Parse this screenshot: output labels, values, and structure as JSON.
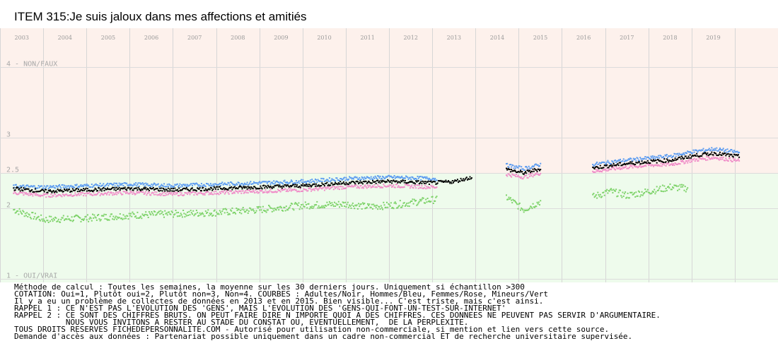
{
  "chart_data": {
    "type": "scatter",
    "title": "ITEM 315:Je suis jaloux dans mes affections et amitiés",
    "x_axis": {
      "type": "time",
      "range": [
        "2002-07",
        "2020-06"
      ],
      "tick_labels": [
        "2003",
        "2004",
        "2005",
        "2006",
        "2007",
        "2008",
        "2009",
        "2010",
        "2011",
        "2012",
        "2013",
        "2014",
        "2015",
        "2016",
        "2017",
        "2018",
        "2019"
      ],
      "years": [
        2003,
        2004,
        2005,
        2006,
        2007,
        2008,
        2009,
        2010,
        2011,
        2012,
        2013,
        2014,
        2015,
        2016,
        2017,
        2018,
        2019
      ]
    },
    "y_axis": {
      "range": [
        1,
        4
      ],
      "ticks": [
        {
          "value": 4,
          "label": "4 - NON/FAUX"
        },
        {
          "value": 3,
          "label": "3"
        },
        {
          "value": 2.5,
          "label": "2.5"
        },
        {
          "value": 2,
          "label": "2"
        },
        {
          "value": 1,
          "label": "1 - OUI/VRAI"
        }
      ]
    },
    "background_bands": [
      {
        "from": 2.5,
        "to": 4,
        "color": "#fdf1ec"
      },
      {
        "from": 1,
        "to": 2.5,
        "color": "#eefbec"
      }
    ],
    "series": [
      {
        "key": "adultes",
        "color": "#000000",
        "points": [
          [
            2002.8,
            2.28
          ],
          [
            2003.5,
            2.24
          ],
          [
            2004.5,
            2.26
          ],
          [
            2005.5,
            2.28
          ],
          [
            2006.5,
            2.26
          ],
          [
            2007.5,
            2.28
          ],
          [
            2008.5,
            2.3
          ],
          [
            2009.5,
            2.32
          ],
          [
            2010.5,
            2.36
          ],
          [
            2011.5,
            2.38
          ],
          [
            2012.5,
            2.36
          ],
          [
            2013.0,
            2.38
          ],
          [
            2013.4,
            2.44
          ]
        ],
        "segments": [
          {
            "from": 2002.8,
            "to": 2013.4
          },
          {
            "from": 2014.2,
            "to": 2015.0,
            "points": [
              [
                2014.2,
                2.55
              ],
              [
                2014.6,
                2.5
              ],
              [
                2015.0,
                2.56
              ]
            ]
          },
          {
            "from": 2016.2,
            "to": 2019.6,
            "points": [
              [
                2016.2,
                2.57
              ],
              [
                2016.8,
                2.62
              ],
              [
                2017.5,
                2.66
              ],
              [
                2018.0,
                2.68
              ],
              [
                2018.5,
                2.74
              ],
              [
                2019.0,
                2.78
              ],
              [
                2019.6,
                2.73
              ]
            ]
          }
        ]
      },
      {
        "key": "hommes",
        "color": "#5b9bf0",
        "points": [
          [
            2002.8,
            2.31
          ],
          [
            2003.5,
            2.3
          ],
          [
            2004.5,
            2.32
          ],
          [
            2005.5,
            2.34
          ],
          [
            2006.5,
            2.32
          ],
          [
            2007.5,
            2.34
          ],
          [
            2008.5,
            2.36
          ],
          [
            2009.5,
            2.38
          ],
          [
            2010.5,
            2.42
          ],
          [
            2011.5,
            2.44
          ],
          [
            2012.5,
            2.42
          ]
        ],
        "segments": [
          {
            "from": 2002.8,
            "to": 2012.6
          },
          {
            "from": 2014.2,
            "to": 2015.0,
            "points": [
              [
                2014.2,
                2.61
              ],
              [
                2014.6,
                2.56
              ],
              [
                2015.0,
                2.62
              ]
            ]
          },
          {
            "from": 2016.2,
            "to": 2019.6,
            "points": [
              [
                2016.2,
                2.62
              ],
              [
                2016.8,
                2.67
              ],
              [
                2017.5,
                2.71
              ],
              [
                2018.0,
                2.74
              ],
              [
                2018.5,
                2.8
              ],
              [
                2019.0,
                2.84
              ],
              [
                2019.6,
                2.79
              ]
            ]
          }
        ]
      },
      {
        "key": "femmes",
        "color": "#f08cc8",
        "points": [
          [
            2002.8,
            2.22
          ],
          [
            2003.5,
            2.18
          ],
          [
            2004.5,
            2.2
          ],
          [
            2005.5,
            2.22
          ],
          [
            2006.5,
            2.2
          ],
          [
            2007.5,
            2.22
          ],
          [
            2008.5,
            2.24
          ],
          [
            2009.5,
            2.26
          ],
          [
            2010.5,
            2.3
          ],
          [
            2011.5,
            2.32
          ],
          [
            2012.5,
            2.3
          ]
        ],
        "segments": [
          {
            "from": 2002.8,
            "to": 2012.6
          },
          {
            "from": 2014.2,
            "to": 2015.0,
            "points": [
              [
                2014.2,
                2.48
              ],
              [
                2014.6,
                2.44
              ],
              [
                2015.0,
                2.5
              ]
            ]
          },
          {
            "from": 2016.2,
            "to": 2019.6,
            "points": [
              [
                2016.2,
                2.52
              ],
              [
                2016.8,
                2.57
              ],
              [
                2017.5,
                2.61
              ],
              [
                2018.0,
                2.62
              ],
              [
                2018.5,
                2.68
              ],
              [
                2019.0,
                2.72
              ],
              [
                2019.6,
                2.67
              ]
            ]
          }
        ]
      },
      {
        "key": "mineurs",
        "color": "#7ed36a",
        "points": [
          [
            2002.8,
            1.98
          ],
          [
            2003.5,
            1.84
          ],
          [
            2004.5,
            1.86
          ],
          [
            2005.5,
            1.9
          ],
          [
            2006.5,
            1.92
          ],
          [
            2007.5,
            1.94
          ],
          [
            2008.5,
            1.98
          ],
          [
            2009.5,
            2.04
          ],
          [
            2010.5,
            2.06
          ],
          [
            2011.0,
            2.02
          ],
          [
            2011.5,
            2.04
          ],
          [
            2012.0,
            2.08
          ],
          [
            2012.5,
            2.12
          ]
        ],
        "segments": [
          {
            "from": 2002.8,
            "to": 2012.6
          },
          {
            "from": 2014.2,
            "to": 2015.0,
            "points": [
              [
                2014.2,
                2.16
              ],
              [
                2014.6,
                1.98
              ],
              [
                2015.0,
                2.1
              ]
            ]
          },
          {
            "from": 2016.2,
            "to": 2018.4,
            "points": [
              [
                2016.2,
                2.16
              ],
              [
                2016.6,
                2.24
              ],
              [
                2017.0,
                2.18
              ],
              [
                2017.5,
                2.24
              ],
              [
                2018.0,
                2.3
              ],
              [
                2018.4,
                2.28
              ]
            ]
          }
        ]
      }
    ]
  },
  "notes": [
    "Méthode de calcul : Toutes les semaines, la moyenne sur les 30 derniers jours. Uniquement si échantillon >300",
    "COTATION: Oui=1, Plutôt oui=2, Plutôt non=3, Non=4. COURBES : Adultes/Noir, Hommes/Bleu, Femmes/Rose, Mineurs/Vert",
    "Il y a eu un problème de collectes de données en 2013 et en 2015. Bien visible... C'est triste, mais c'est ainsi.",
    "RAPPEL 1 : CE N'EST PAS L'EVOLUTION DES 'GENS', MAIS L'EVOLUTION DES 'GENS-QUI-FONT-UN-TEST-SUR-INTERNET'",
    "RAPPEL 2 : CE SONT DES CHIFFRES BRUTS. ON PEUT FAIRE DIRE N IMPORTE QUOI A DES CHIFFRES. CES DONNEES NE PEUVENT PAS SERVIR D'ARGUMENTAIRE.",
    "           NOUS VOUS INVITONS A RESTER AU STADE DU CONSTAT OU, EVENTUELLEMENT,  DE LA PERPLEXITE.",
    "TOUS DROITS RESERVES FICHEDEPERSONNALITE.COM - Autorisé pour utilisation non-commerciale, si mention et lien vers cette source.",
    "Demande d'accès aux données : Partenariat possible uniquement dans un cadre non-commercial ET de recherche universitaire supervisée."
  ]
}
